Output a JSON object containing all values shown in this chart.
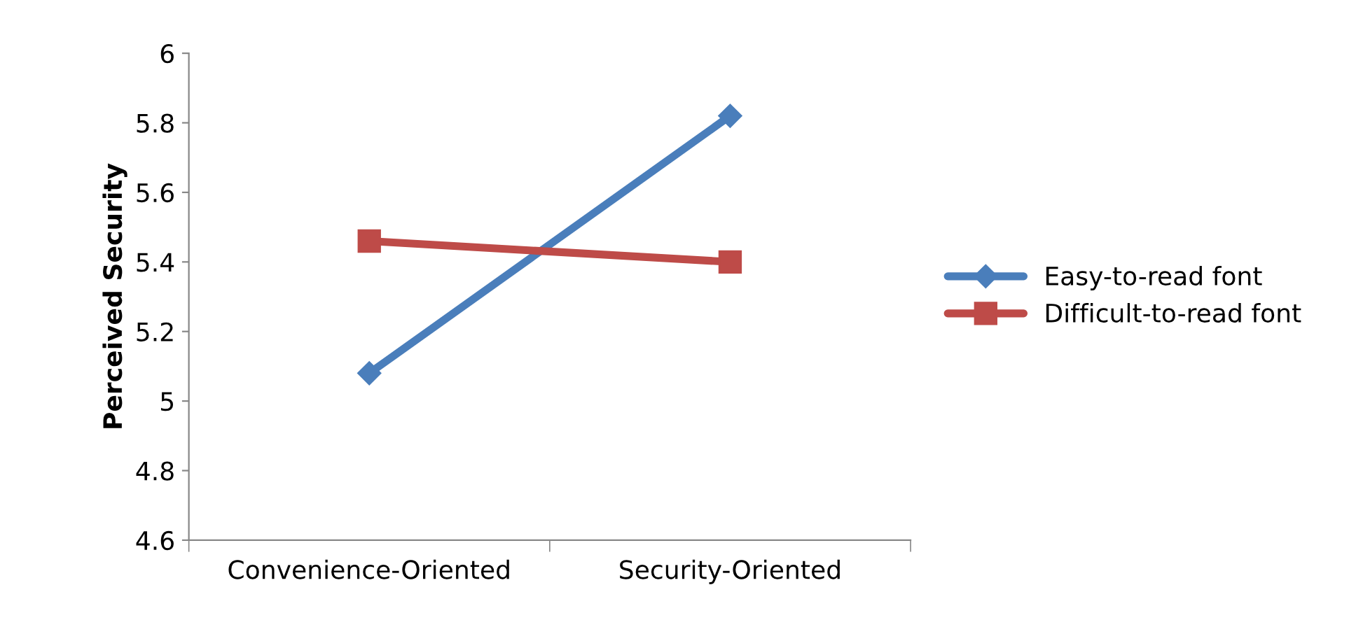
{
  "chart_data": {
    "type": "line",
    "ylabel": "Perceived Security",
    "categories": [
      "Convenience-Oriented",
      "Security-Oriented"
    ],
    "series": [
      {
        "name": "Easy-to-read font",
        "color": "#4a7ebb",
        "marker": "diamond",
        "values": [
          5.08,
          5.82
        ]
      },
      {
        "name": "Difficult-to-read font",
        "color": "#be4b48",
        "marker": "square",
        "values": [
          5.46,
          5.4
        ]
      }
    ],
    "ylim": [
      4.6,
      6
    ],
    "yticks": [
      4.6,
      4.8,
      5,
      5.2,
      5.4,
      5.6,
      5.8,
      6
    ],
    "grid": false,
    "legend": "right",
    "line_style": "solid"
  }
}
